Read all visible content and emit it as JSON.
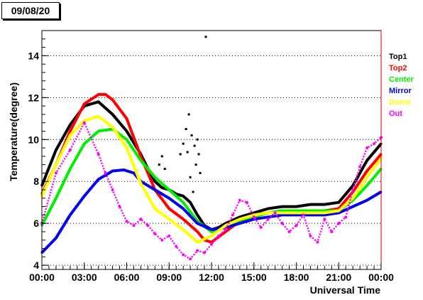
{
  "header": {
    "date": "09/08/20"
  },
  "chart_data": {
    "type": "line",
    "title": "",
    "xlabel": "Universal Time",
    "ylabel": "Temperature(degree)",
    "xlim": [
      0,
      24
    ],
    "ylim": [
      3.8,
      15.2
    ],
    "grid": "horizontal dotted",
    "legend_placement": "right",
    "x_ticks": [
      "00:00",
      "03:00",
      "06:00",
      "09:00",
      "12:00",
      "15:00",
      "18:00",
      "21:00",
      "00:00"
    ],
    "y_ticks": [
      "4",
      "6",
      "8",
      "10",
      "12",
      "14"
    ],
    "series": [
      {
        "name": "Top1",
        "color": "#000000",
        "x": [
          0,
          1,
          2,
          3,
          4,
          5,
          6,
          7,
          7.5,
          8,
          8.5,
          9,
          9.5,
          10,
          10.5,
          11,
          11.5,
          12,
          12.5,
          13,
          14,
          15,
          16,
          17,
          18,
          19,
          20,
          21,
          22,
          23,
          24
        ],
        "y": [
          7.8,
          9.5,
          10.7,
          11.6,
          11.8,
          11.2,
          10.4,
          9.3,
          8.6,
          8.0,
          7.7,
          7.6,
          7.4,
          7.3,
          7.0,
          6.4,
          5.9,
          5.7,
          5.8,
          6.0,
          6.3,
          6.5,
          6.7,
          6.8,
          6.8,
          6.9,
          6.9,
          7.0,
          7.8,
          9.0,
          9.8
        ]
      },
      {
        "name": "Top2",
        "color": "#ff0000",
        "x": [
          0,
          1,
          2,
          3,
          4,
          4.5,
          5,
          6,
          7,
          8,
          9,
          10,
          11,
          11.5,
          12,
          13,
          14,
          15,
          16,
          17,
          18,
          19,
          20,
          21,
          22,
          23,
          24
        ],
        "y": [
          7.4,
          8.8,
          10.4,
          11.7,
          12.15,
          12.15,
          11.9,
          11.0,
          9.2,
          7.6,
          6.7,
          6.2,
          5.6,
          5.2,
          5.1,
          5.6,
          6.1,
          6.4,
          6.5,
          6.6,
          6.6,
          6.6,
          6.6,
          6.7,
          7.5,
          8.5,
          9.3
        ]
      },
      {
        "name": "Center",
        "color": "#00ee00",
        "x": [
          0,
          1,
          2,
          3,
          4,
          5,
          6,
          7,
          8,
          9,
          10,
          11,
          12,
          13,
          14,
          15,
          16,
          17,
          18,
          19,
          20,
          21,
          22,
          23,
          24
        ],
        "y": [
          5.9,
          7.2,
          8.6,
          9.8,
          10.4,
          10.5,
          10.0,
          9.0,
          8.2,
          7.6,
          7.0,
          6.1,
          5.6,
          5.8,
          6.1,
          6.3,
          6.5,
          6.6,
          6.6,
          6.6,
          6.6,
          6.6,
          7.1,
          7.8,
          8.6
        ]
      },
      {
        "name": "Mirror",
        "color": "#0000ee",
        "x": [
          0,
          1,
          2,
          3,
          4,
          5,
          5.8,
          6.5,
          7,
          8,
          9,
          10,
          11,
          12,
          13,
          14,
          15,
          16,
          17,
          18,
          19,
          20,
          21,
          22,
          23,
          24
        ],
        "y": [
          4.6,
          5.3,
          6.4,
          7.3,
          8.1,
          8.5,
          8.55,
          8.4,
          8.0,
          7.6,
          7.2,
          6.7,
          6.0,
          5.7,
          5.8,
          6.0,
          6.2,
          6.3,
          6.4,
          6.4,
          6.4,
          6.4,
          6.5,
          6.8,
          7.1,
          7.5
        ]
      },
      {
        "name": "Dome",
        "color": "#ffff00",
        "x": [
          0,
          1,
          2,
          3,
          4,
          5,
          6,
          7,
          8,
          9,
          10,
          11,
          12,
          13,
          14,
          15,
          16,
          17,
          18,
          19,
          20,
          21,
          22,
          23,
          24
        ],
        "y": [
          7.3,
          8.8,
          10.2,
          10.9,
          11.1,
          10.6,
          9.6,
          7.9,
          6.7,
          6.2,
          5.7,
          5.1,
          5.4,
          5.9,
          6.2,
          6.4,
          6.5,
          6.5,
          6.5,
          6.5,
          6.5,
          6.6,
          7.2,
          8.2,
          9.1
        ]
      },
      {
        "name": "Out",
        "color": "#ff00ff",
        "x": [
          0,
          1,
          2,
          3,
          4,
          4.5,
          5,
          5.5,
          6,
          6.5,
          7,
          7.5,
          8,
          8.5,
          9,
          9.5,
          10,
          10.5,
          11,
          11.5,
          12,
          12.5,
          13,
          13.5,
          14,
          14.5,
          15,
          15.5,
          16,
          16.5,
          17,
          17.5,
          18,
          18.5,
          19,
          19.5,
          20,
          20.5,
          21,
          21.5,
          22,
          22.5,
          23,
          23.5,
          24
        ],
        "y": [
          6.0,
          8.4,
          9.5,
          10.8,
          9.3,
          8.4,
          7.6,
          6.8,
          6.1,
          5.9,
          6.2,
          5.9,
          5.5,
          5.2,
          5.4,
          4.9,
          4.5,
          4.3,
          4.7,
          4.6,
          5.0,
          5.4,
          5.7,
          6.4,
          7.1,
          7.0,
          6.3,
          5.8,
          6.2,
          6.5,
          6.0,
          5.6,
          5.9,
          6.4,
          5.4,
          5.1,
          6.2,
          5.6,
          6.0,
          6.3,
          7.6,
          8.7,
          9.6,
          9.8,
          10.1
        ]
      },
      {
        "name": "Top1 outliers",
        "color": "#000000",
        "legend": false,
        "x": [
          8.3,
          8.5,
          8.7,
          9.8,
          10.0,
          10.2,
          10.3,
          10.4,
          10.6,
          10.8,
          11.0,
          11.1,
          11.2,
          10.5,
          10.7,
          10.9,
          11.6
        ],
        "y": [
          8.8,
          9.2,
          8.6,
          9.3,
          9.8,
          10.5,
          9.4,
          11.2,
          10.2,
          9.7,
          10.0,
          9.3,
          8.4,
          8.2,
          7.5,
          8.8,
          14.9
        ]
      }
    ]
  }
}
